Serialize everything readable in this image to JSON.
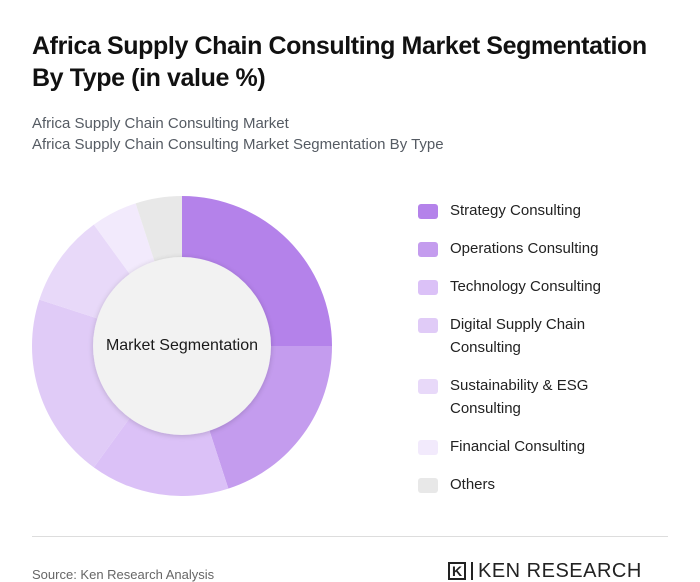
{
  "header": {
    "title": "Africa Supply Chain Consulting Market Segmentation By Type (in value %)",
    "subtitle_line1": "Africa Supply Chain Consulting Market",
    "subtitle_line2": "Africa Supply Chain Consulting Market Segmentation By Type"
  },
  "center_label": "Market Segmentation",
  "legend": {
    "items": [
      {
        "label": "Strategy Consulting",
        "color": "#b482ea"
      },
      {
        "label": "Operations Consulting",
        "color": "#c49cee"
      },
      {
        "label": "Technology Consulting",
        "color": "#dbc1f7"
      },
      {
        "label": "Digital Supply Chain Consulting",
        "color": "#e0cbf7"
      },
      {
        "label": "Sustainability & ESG Consulting",
        "color": "#e8d9f9"
      },
      {
        "label": "Financial Consulting",
        "color": "#f2eafc"
      },
      {
        "label": "Others",
        "color": "#e8e8e8"
      }
    ]
  },
  "footer": {
    "source": "Source: Ken Research Analysis",
    "logo_mark": "K",
    "logo_text": "KEN RESEARCH"
  },
  "chart_data": {
    "type": "pie",
    "subtype": "donut",
    "title": "Africa Supply Chain Consulting Market Segmentation By Type (in value %)",
    "subtitle": "Africa Supply Chain Consulting Market Segmentation By Type",
    "center_label": "Market Segmentation",
    "categories": [
      "Strategy Consulting",
      "Operations Consulting",
      "Technology Consulting",
      "Digital Supply Chain Consulting",
      "Sustainability & ESG Consulting",
      "Financial Consulting",
      "Others"
    ],
    "values": [
      25,
      20,
      15,
      20,
      10,
      5,
      5
    ],
    "colors": [
      "#b482ea",
      "#c49cee",
      "#dbc1f7",
      "#e0cbf7",
      "#e8d9f9",
      "#f2eafc",
      "#e8e8e8"
    ],
    "unit": "%",
    "legend_position": "right",
    "start_angle": "top, clockwise"
  }
}
